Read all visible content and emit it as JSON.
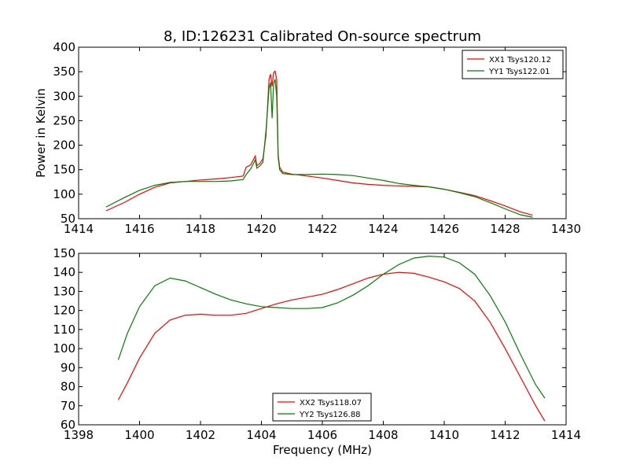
{
  "chart_data": [
    {
      "type": "line",
      "title": "8, ID:126231 Calibrated On-source spectrum",
      "xlabel": "",
      "ylabel": "Power in Kelvin",
      "xlim": [
        1414,
        1430
      ],
      "ylim": [
        50,
        400
      ],
      "xticks": [
        1414,
        1416,
        1418,
        1420,
        1422,
        1424,
        1426,
        1428,
        1430
      ],
      "yticks": [
        50,
        100,
        150,
        200,
        250,
        300,
        350,
        400
      ],
      "legend_position": "top-right",
      "series": [
        {
          "name": "XX1 Tsys120.12",
          "color": "#ff0000",
          "x": [
            1414.9,
            1415.5,
            1416.0,
            1416.5,
            1417.0,
            1417.5,
            1418.0,
            1418.5,
            1419.0,
            1419.4,
            1419.5,
            1419.65,
            1419.8,
            1419.85,
            1419.95,
            1420.05,
            1420.15,
            1420.25,
            1420.3,
            1420.35,
            1420.4,
            1420.45,
            1420.5,
            1420.55,
            1420.6,
            1420.7,
            1421.0,
            1421.5,
            1422.0,
            1422.5,
            1423.0,
            1423.5,
            1424.0,
            1424.5,
            1425.0,
            1425.5,
            1426.0,
            1426.5,
            1427.0,
            1427.5,
            1428.0,
            1428.5,
            1428.9
          ],
          "values": [
            66,
            83,
            100,
            114,
            123,
            126,
            129,
            131,
            134,
            137,
            155,
            160,
            178,
            158,
            163,
            172,
            220,
            335,
            345,
            320,
            348,
            351,
            335,
            180,
            155,
            145,
            141,
            137,
            133,
            128,
            123,
            120,
            118,
            117,
            116,
            115,
            110,
            104,
            97,
            87,
            76,
            64,
            57
          ]
        },
        {
          "name": "YY1 Tsys122.01",
          "color": "#008000",
          "x": [
            1414.9,
            1415.5,
            1416.0,
            1416.5,
            1417.0,
            1417.5,
            1418.0,
            1418.5,
            1419.0,
            1419.4,
            1419.5,
            1419.65,
            1419.8,
            1419.85,
            1419.95,
            1420.05,
            1420.15,
            1420.25,
            1420.3,
            1420.35,
            1420.4,
            1420.45,
            1420.5,
            1420.55,
            1420.6,
            1420.7,
            1421.0,
            1421.5,
            1422.0,
            1422.5,
            1423.0,
            1423.5,
            1424.0,
            1424.5,
            1425.0,
            1425.5,
            1426.0,
            1426.5,
            1427.0,
            1427.5,
            1428.0,
            1428.5,
            1428.9
          ],
          "values": [
            74,
            93,
            108,
            118,
            124,
            126,
            126,
            126,
            127,
            130,
            140,
            152,
            170,
            153,
            158,
            165,
            230,
            315,
            328,
            255,
            325,
            335,
            300,
            175,
            150,
            142,
            140,
            140,
            141,
            140,
            138,
            133,
            128,
            122,
            118,
            115,
            110,
            103,
            95,
            83,
            70,
            58,
            53
          ]
        }
      ]
    },
    {
      "type": "line",
      "title": "",
      "xlabel": "Frequency (MHz)",
      "ylabel": "",
      "xlim": [
        1398,
        1414
      ],
      "ylim": [
        60,
        150
      ],
      "xticks": [
        1398,
        1400,
        1402,
        1404,
        1406,
        1408,
        1410,
        1412,
        1414
      ],
      "yticks": [
        60,
        70,
        80,
        90,
        100,
        110,
        120,
        130,
        140,
        150
      ],
      "legend_position": "bottom-center",
      "series": [
        {
          "name": "XX2 Tsys118.07",
          "color": "#ff0000",
          "x": [
            1399.3,
            1399.6,
            1400.0,
            1400.5,
            1401.0,
            1401.5,
            1402.0,
            1402.5,
            1403.0,
            1403.5,
            1404.0,
            1404.5,
            1405.0,
            1405.5,
            1406.0,
            1406.5,
            1407.0,
            1407.5,
            1408.0,
            1408.5,
            1409.0,
            1409.5,
            1410.0,
            1410.5,
            1411.0,
            1411.5,
            1412.0,
            1412.5,
            1413.0,
            1413.3
          ],
          "values": [
            73,
            82,
            95,
            108,
            115,
            117.5,
            118,
            117.5,
            117.5,
            118.5,
            121,
            123.5,
            125.5,
            127,
            128.5,
            131,
            134,
            137,
            139,
            140,
            139.5,
            137.5,
            135,
            131.5,
            125,
            114,
            100,
            85,
            70,
            62
          ]
        },
        {
          "name": "YY2 Tsys126.88",
          "color": "#008000",
          "x": [
            1399.3,
            1399.6,
            1400.0,
            1400.5,
            1401.0,
            1401.5,
            1402.0,
            1402.5,
            1403.0,
            1403.5,
            1404.0,
            1404.5,
            1405.0,
            1405.5,
            1406.0,
            1406.5,
            1407.0,
            1407.5,
            1408.0,
            1408.5,
            1409.0,
            1409.5,
            1410.0,
            1410.5,
            1411.0,
            1411.5,
            1412.0,
            1412.5,
            1413.0,
            1413.3
          ],
          "values": [
            94,
            108,
            122,
            133,
            137,
            135.5,
            132,
            128.5,
            125.5,
            123.5,
            122,
            121.5,
            121,
            121,
            121.5,
            124,
            128,
            133,
            139,
            144,
            147.5,
            148.5,
            148,
            145,
            139,
            128,
            114,
            97,
            81,
            74
          ]
        }
      ]
    }
  ]
}
